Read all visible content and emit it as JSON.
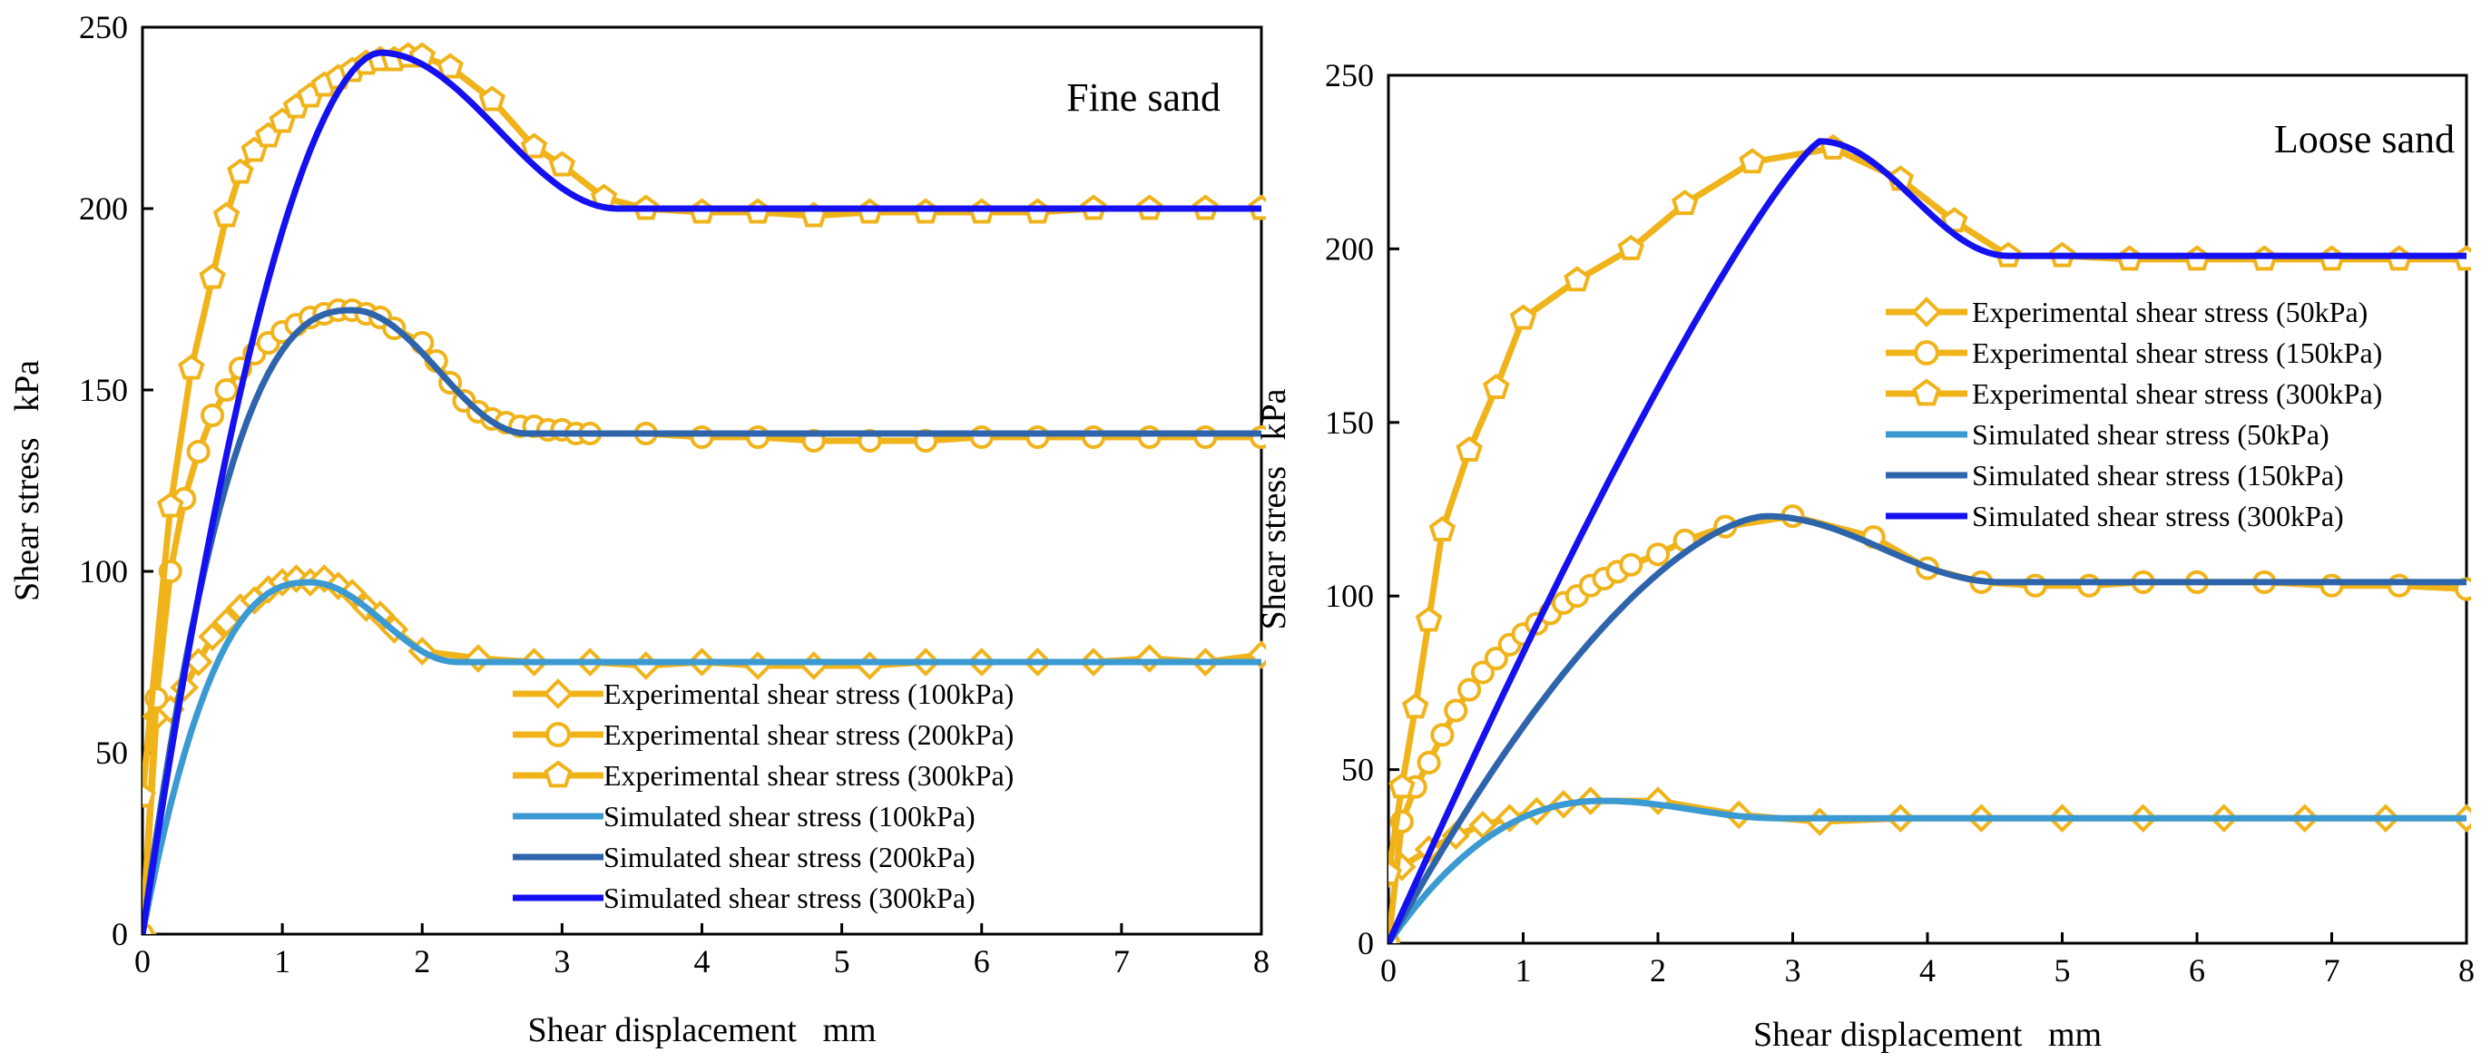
{
  "colors": {
    "experimental": "#F0B31A",
    "simulated_low": "#3B9AD2",
    "simulated_mid": "#2E64AB",
    "simulated_high": "#1410F0",
    "axis": "#000000"
  },
  "chart_data": [
    {
      "type": "line",
      "title": "Fine sand",
      "xlabel": "Shear displacement   mm",
      "ylabel": "Shear stress   kPa",
      "xlim": [
        0,
        8
      ],
      "ylim": [
        0,
        250
      ],
      "xticks": [
        0,
        1,
        2,
        3,
        4,
        5,
        6,
        7,
        8
      ],
      "yticks": [
        0,
        50,
        100,
        150,
        200,
        250
      ],
      "legend_position": "bottom-right",
      "series": [
        {
          "name": "Experimental shear stress (100kPa)",
          "kind": "experimental",
          "marker": "diamond",
          "x": [
            0,
            0.1,
            0.2,
            0.3,
            0.4,
            0.5,
            0.6,
            0.7,
            0.8,
            0.9,
            1.0,
            1.1,
            1.2,
            1.3,
            1.4,
            1.5,
            1.6,
            1.7,
            1.8,
            2.0,
            2.4,
            2.8,
            3.2,
            3.6,
            4.0,
            4.4,
            4.8,
            5.2,
            5.6,
            6.0,
            6.4,
            6.8,
            7.2,
            7.6,
            8.0
          ],
          "y": [
            0,
            60,
            62,
            68,
            75,
            82,
            86,
            90,
            92,
            95,
            97,
            98,
            97,
            98,
            96,
            94,
            90,
            88,
            84,
            78,
            76,
            75,
            75,
            74,
            75,
            74,
            74,
            74,
            75,
            75,
            75,
            75,
            76,
            75,
            77
          ]
        },
        {
          "name": "Experimental shear stress (200kPa)",
          "kind": "experimental",
          "marker": "circle",
          "x": [
            0,
            0.1,
            0.2,
            0.3,
            0.4,
            0.5,
            0.6,
            0.7,
            0.8,
            0.9,
            1.0,
            1.1,
            1.2,
            1.3,
            1.4,
            1.5,
            1.6,
            1.7,
            1.8,
            2.0,
            2.1,
            2.2,
            2.3,
            2.4,
            2.5,
            2.6,
            2.7,
            2.8,
            2.9,
            3.0,
            3.1,
            3.2,
            3.6,
            4.0,
            4.4,
            4.8,
            5.2,
            5.6,
            6.0,
            6.4,
            6.8,
            7.2,
            7.6,
            8.0
          ],
          "y": [
            0,
            65,
            100,
            120,
            133,
            143,
            150,
            156,
            160,
            163,
            166,
            168,
            170,
            171,
            172,
            172,
            171,
            170,
            167,
            163,
            158,
            152,
            147,
            144,
            142,
            141,
            140,
            140,
            139,
            139,
            138,
            138,
            138,
            137,
            137,
            136,
            136,
            136,
            137,
            137,
            137,
            137,
            137,
            137
          ]
        },
        {
          "name": "Experimental shear stress (300kPa)",
          "kind": "experimental",
          "marker": "pentagon",
          "x": [
            0,
            0.2,
            0.35,
            0.5,
            0.6,
            0.7,
            0.8,
            0.9,
            1.0,
            1.1,
            1.2,
            1.3,
            1.4,
            1.5,
            1.6,
            1.7,
            1.8,
            1.9,
            2.0,
            2.2,
            2.5,
            2.8,
            3.0,
            3.3,
            3.6,
            4.0,
            4.4,
            4.8,
            5.2,
            5.6,
            6.0,
            6.4,
            6.8,
            7.2,
            7.6,
            8.0
          ],
          "y": [
            38,
            118,
            156,
            181,
            198,
            210,
            216,
            220,
            224,
            228,
            231,
            234,
            236,
            238,
            240,
            241,
            241,
            242,
            242,
            239,
            230,
            217,
            212,
            203,
            200,
            199,
            199,
            198,
            199,
            199,
            199,
            199,
            200,
            200,
            200,
            200
          ]
        },
        {
          "name": "Simulated shear stress (100kPa)",
          "kind": "simulated",
          "color_key": "simulated_low",
          "curve": {
            "peak_x": 1.2,
            "peak_y": 97,
            "plateau_x": 2.25,
            "plateau_y": 75,
            "k": 2.5
          }
        },
        {
          "name": "Simulated shear stress (200kPa)",
          "kind": "simulated",
          "color_key": "simulated_mid",
          "curve": {
            "peak_x": 1.5,
            "peak_y": 172,
            "plateau_x": 2.75,
            "plateau_y": 138,
            "k": 2.5
          }
        },
        {
          "name": "Simulated shear stress (300kPa)",
          "kind": "simulated",
          "color_key": "simulated_high",
          "curve": {
            "peak_x": 1.7,
            "peak_y": 243,
            "plateau_x": 3.4,
            "plateau_y": 200,
            "k": 1.8
          }
        }
      ]
    },
    {
      "type": "line",
      "title": "Loose sand",
      "xlabel": "Shear displacement   mm",
      "ylabel": "Shear stress   kPa",
      "xlim": [
        0,
        8
      ],
      "ylim": [
        0,
        250
      ],
      "xticks": [
        0,
        1,
        2,
        3,
        4,
        5,
        6,
        7,
        8
      ],
      "yticks": [
        0,
        50,
        100,
        150,
        200,
        250
      ],
      "legend_position": "top-right",
      "series": [
        {
          "name": "Experimental shear stress (50kPa)",
          "kind": "experimental",
          "marker": "diamond",
          "x": [
            0,
            0.1,
            0.3,
            0.5,
            0.7,
            0.9,
            1.1,
            1.3,
            1.5,
            2.0,
            2.6,
            3.2,
            3.8,
            4.4,
            5.0,
            5.6,
            6.2,
            6.8,
            7.4,
            8.0
          ],
          "y": [
            20,
            22,
            27,
            31,
            34,
            36,
            38,
            40,
            41,
            41,
            37,
            35,
            36,
            36,
            36,
            36,
            36,
            36,
            36,
            36
          ]
        },
        {
          "name": "Experimental shear stress (150kPa)",
          "kind": "experimental",
          "marker": "circle",
          "x": [
            0,
            0.1,
            0.2,
            0.3,
            0.4,
            0.5,
            0.6,
            0.7,
            0.8,
            0.9,
            1.0,
            1.1,
            1.2,
            1.3,
            1.4,
            1.5,
            1.6,
            1.7,
            1.8,
            2.0,
            2.2,
            2.5,
            3.0,
            3.6,
            4.0,
            4.4,
            4.8,
            5.2,
            5.6,
            6.0,
            6.5,
            7.0,
            7.5,
            8.0
          ],
          "y": [
            0,
            35,
            45,
            52,
            60,
            67,
            73,
            78,
            82,
            86,
            89,
            92,
            95,
            98,
            100,
            103,
            105,
            107,
            109,
            112,
            116,
            120,
            123,
            117,
            108,
            104,
            103,
            103,
            104,
            104,
            104,
            103,
            103,
            102
          ]
        },
        {
          "name": "Experimental shear stress (300kPa)",
          "kind": "experimental",
          "marker": "pentagon",
          "x": [
            0,
            0.1,
            0.2,
            0.3,
            0.4,
            0.6,
            0.8,
            1.0,
            1.4,
            1.8,
            2.2,
            2.7,
            3.3,
            3.8,
            4.2,
            4.6,
            5.0,
            5.5,
            6.0,
            6.5,
            7.0,
            7.5,
            8.0
          ],
          "y": [
            20,
            45,
            68,
            93,
            119,
            142,
            160,
            180,
            191,
            200,
            213,
            225,
            229,
            220,
            208,
            198,
            198,
            197,
            197,
            197,
            197,
            197,
            197
          ]
        },
        {
          "name": "Simulated shear stress (50kPa)",
          "kind": "simulated",
          "color_key": "simulated_low",
          "curve": {
            "peak_x": 1.6,
            "peak_y": 41,
            "plateau_x": 2.9,
            "plateau_y": 36,
            "k": 2.2
          }
        },
        {
          "name": "Simulated shear stress (150kPa)",
          "kind": "simulated",
          "color_key": "simulated_mid",
          "curve": {
            "peak_x": 2.8,
            "peak_y": 123,
            "plateau_x": 4.55,
            "plateau_y": 104,
            "k": 1.6
          }
        },
        {
          "name": "Simulated shear stress (300kPa)",
          "kind": "simulated",
          "color_key": "simulated_high",
          "curve": {
            "peak_x": 3.2,
            "peak_y": 231,
            "plateau_x": 4.6,
            "plateau_y": 198,
            "k": 1.2
          }
        }
      ]
    }
  ]
}
